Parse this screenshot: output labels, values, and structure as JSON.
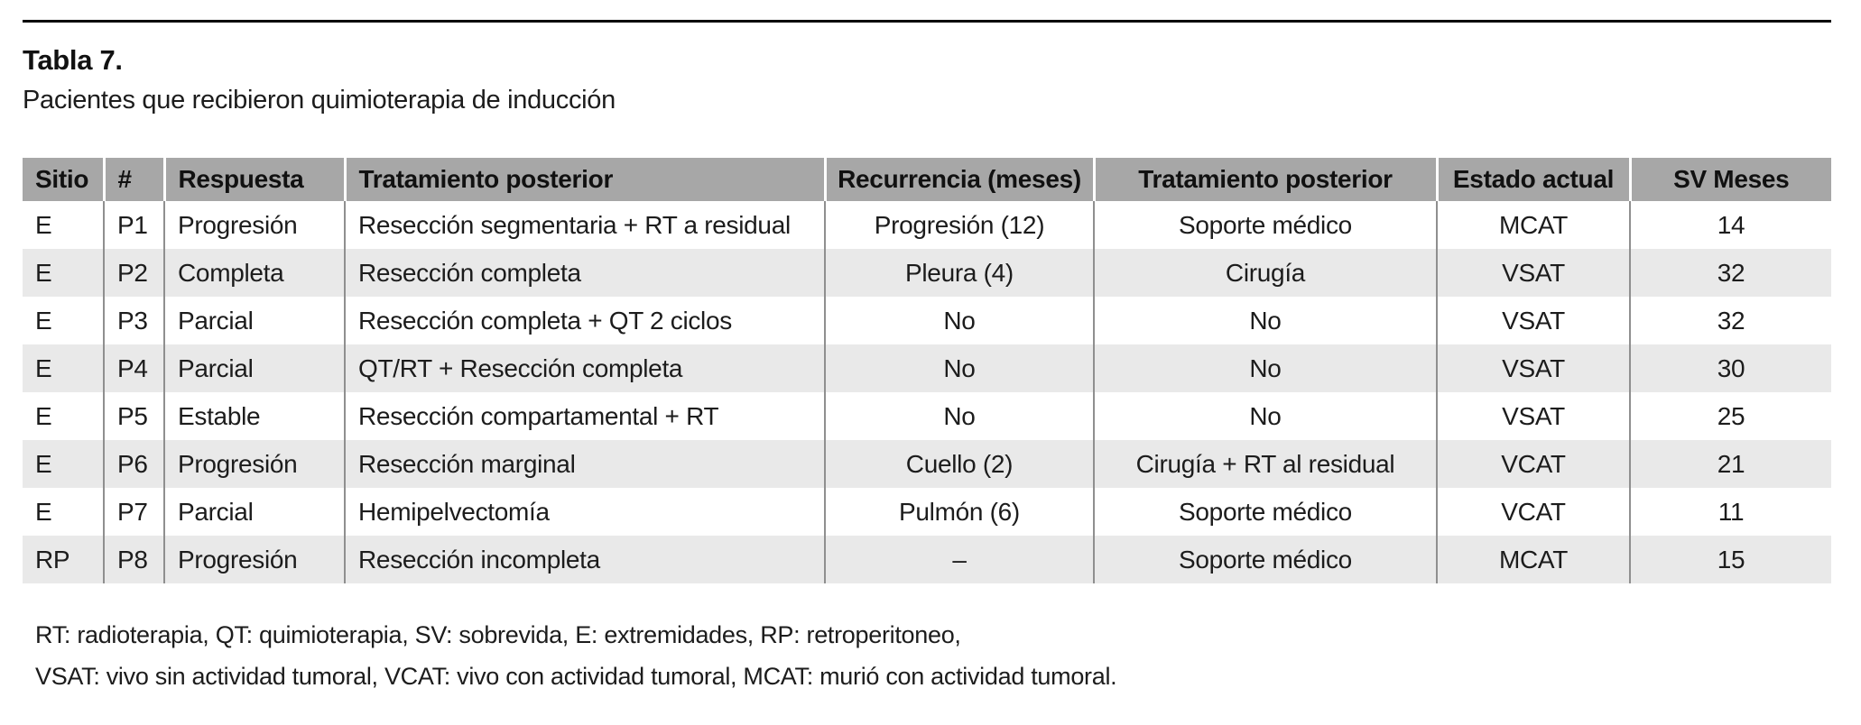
{
  "title": "Tabla 7.",
  "subtitle": "Pacientes que recibieron quimioterapia de inducción",
  "table": {
    "columns": [
      "Sitio",
      "#",
      "Respuesta",
      "Tratamiento posterior",
      "Recurrencia (meses)",
      "Tratamiento posterior",
      "Estado actual",
      "SV Meses"
    ],
    "rows": [
      [
        "E",
        "P1",
        "Progresión",
        "Resección segmentaria + RT a residual",
        "Progresión (12)",
        "Soporte médico",
        "MCAT",
        "14"
      ],
      [
        "E",
        "P2",
        "Completa",
        "Resección completa",
        "Pleura (4)",
        "Cirugía",
        "VSAT",
        "32"
      ],
      [
        "E",
        "P3",
        "Parcial",
        "Resección completa + QT 2 ciclos",
        "No",
        "No",
        "VSAT",
        "32"
      ],
      [
        "E",
        "P4",
        "Parcial",
        "QT/RT + Resección completa",
        "No",
        "No",
        "VSAT",
        "30"
      ],
      [
        "E",
        "P5",
        "Estable",
        "Resección compartamental + RT",
        "No",
        "No",
        "VSAT",
        "25"
      ],
      [
        "E",
        "P6",
        "Progresión",
        "Resección marginal",
        "Cuello (2)",
        "Cirugía + RT al residual",
        "VCAT",
        "21"
      ],
      [
        "E",
        "P7",
        "Parcial",
        "Hemipelvectomía",
        "Pulmón (6)",
        "Soporte médico",
        "VCAT",
        "11"
      ],
      [
        "RP",
        "P8",
        "Progresión",
        "Resección incompleta",
        "–",
        "Soporte médico",
        "MCAT",
        "15"
      ]
    ]
  },
  "footnotes": [
    "RT: radioterapia, QT: quimioterapia, SV: sobrevida, E: extremidades, RP: retroperitoneo,",
    "VSAT: vivo sin actividad tumoral, VCAT: vivo con actividad tumoral, MCAT: murió con actividad tumoral."
  ],
  "colors": {
    "header_bg": "#a7a7a7",
    "row_alt_bg": "#e9e9e9",
    "grid_line": "#8f8f8f",
    "rule": "#000000"
  }
}
